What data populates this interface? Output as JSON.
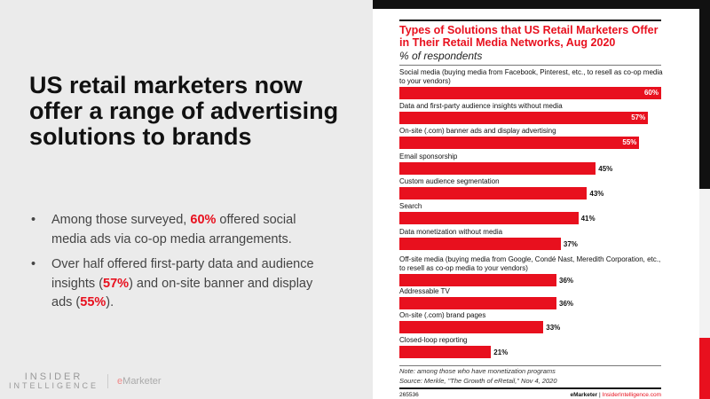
{
  "headline": "US retail marketers now offer a range of advertising solutions to brands",
  "bullets": [
    {
      "pre": "Among those surveyed, ",
      "hl": "60%",
      "post": " offered social media ads via co-op media arrangements."
    },
    {
      "pre": "Over half offered first-party data and audience insights (",
      "hl": "57%",
      "mid": ") and on-site banner and display ads (",
      "hl2": "55%",
      "post": ")."
    }
  ],
  "logos": {
    "ii_line1": "INSIDER",
    "ii_line2": "INTELLIGENCE",
    "em_e": "e",
    "em_rest": "Marketer"
  },
  "colors": {
    "accent": "#e8101e",
    "dark": "#111111",
    "panel": "#ebebeb"
  },
  "chart_data": {
    "type": "bar",
    "orientation": "horizontal",
    "title": "Types of Solutions that US Retail Marketers Offer in Their Retail Media Networks, Aug 2020",
    "subtitle": "% of respondents",
    "categories": [
      "Social media (buying media from Facebook, Pinterest, etc., to resell as co-op media to your vendors)",
      "Data and first-party audience insights without media",
      "On-site (.com) banner ads and display advertising",
      "Email sponsorship",
      "Custom audience segmentation",
      "Search",
      "Data monetization without media",
      "Off-site media (buying media from Google, Condé Nast, Meredith Corporation, etc., to resell as co-op media to your vendors)",
      "Addressable TV",
      "On-site (.com) brand pages",
      "Closed-loop reporting"
    ],
    "values": [
      60,
      57,
      55,
      45,
      43,
      41,
      37,
      36,
      36,
      33,
      21
    ],
    "value_labels": [
      "60%",
      "57%",
      "55%",
      "45%",
      "43%",
      "41%",
      "37%",
      "36%",
      "36%",
      "33%",
      "21%"
    ],
    "xlim": [
      0,
      60
    ],
    "note": "Note: among those who have monetization programs",
    "source": "Source: Merkle, \"The Growth of eRetail,\" Nov 4, 2020",
    "chart_id": "265536",
    "credit_left": "eMarketer",
    "credit_sep": "|",
    "credit_right": "InsiderIntelligence.com"
  }
}
